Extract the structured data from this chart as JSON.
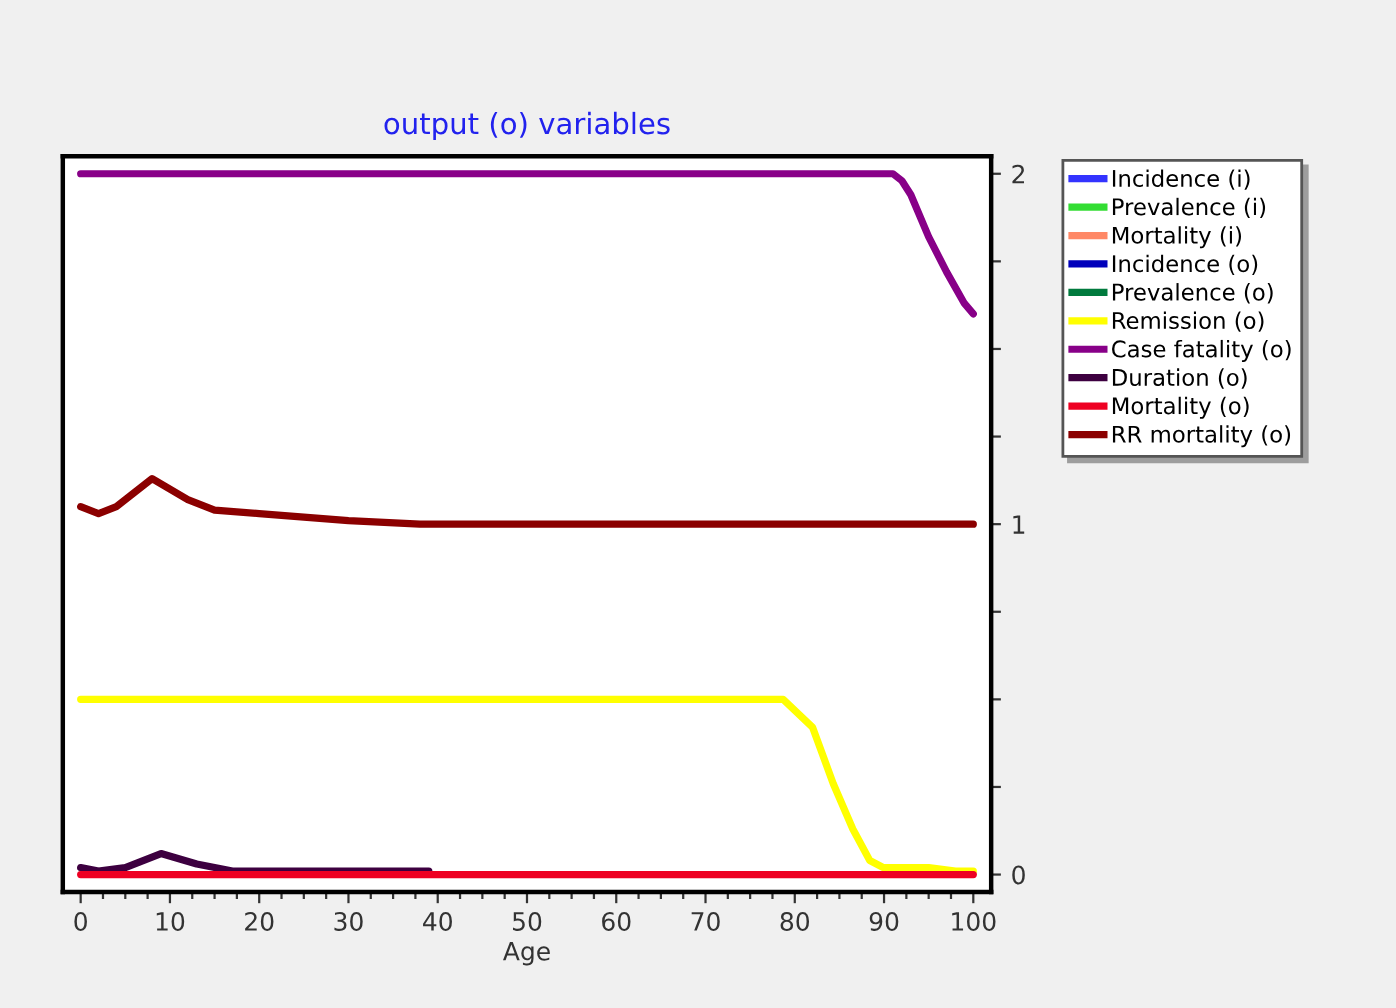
{
  "chart_data": {
    "type": "line",
    "title": "output (o) variables",
    "xlabel": "Age",
    "xlim": [
      -2,
      102
    ],
    "ylim": [
      -0.05,
      2.05
    ],
    "xticks": [
      0,
      {
        "value": 2.5,
        "label": null
      },
      {
        "value": 5,
        "label": null
      },
      {
        "value": 7.5,
        "label": null
      },
      10,
      {
        "value": 12.5,
        "label": null
      },
      {
        "value": 15,
        "label": null
      },
      {
        "value": 17.5,
        "label": null
      },
      20,
      {
        "value": 22.5,
        "label": null
      },
      {
        "value": 25,
        "label": null
      },
      {
        "value": 27.5,
        "label": null
      },
      30,
      {
        "value": 32.5,
        "label": null
      },
      {
        "value": 35,
        "label": null
      },
      {
        "value": 37.5,
        "label": null
      },
      40,
      {
        "value": 42.5,
        "label": null
      },
      {
        "value": 45,
        "label": null
      },
      {
        "value": 47.5,
        "label": null
      },
      50,
      {
        "value": 52.5,
        "label": null
      },
      {
        "value": 55,
        "label": null
      },
      {
        "value": 57.5,
        "label": null
      },
      60,
      {
        "value": 62.5,
        "label": null
      },
      {
        "value": 65,
        "label": null
      },
      {
        "value": 67.5,
        "label": null
      },
      70,
      {
        "value": 72.5,
        "label": null
      },
      {
        "value": 75,
        "label": null
      },
      {
        "value": 77.5,
        "label": null
      },
      80,
      {
        "value": 82.5,
        "label": null
      },
      {
        "value": 85,
        "label": null
      },
      {
        "value": 87.5,
        "label": null
      },
      90,
      {
        "value": 92.5,
        "label": null
      },
      {
        "value": 95,
        "label": null
      },
      {
        "value": 97.5,
        "label": null
      },
      100
    ],
    "yticks": [
      0,
      {
        "value": 0.25,
        "label": null
      },
      {
        "value": 0.5,
        "label": null
      },
      {
        "value": 0.75,
        "label": null
      },
      1,
      {
        "value": 1.25,
        "label": null
      },
      {
        "value": 1.5,
        "label": null
      },
      {
        "value": 1.75,
        "label": null
      },
      2
    ],
    "grid": false,
    "legend": "right",
    "line_style": "solid",
    "marker": "none",
    "series": [
      {
        "name": "Incidence (i)",
        "color": "#3333ff"
      },
      {
        "name": "Prevalence (i)",
        "color": "#33dd33"
      },
      {
        "name": "Mortality (i)",
        "color": "#ff8866"
      },
      {
        "name": "Incidence (o)",
        "color": "#0000bb"
      },
      {
        "name": "Prevalence (o)",
        "color": "#007a3d"
      },
      {
        "name": "Remission (o)",
        "color": "#ffff00",
        "x": [
          0,
          78.7,
          82,
          84.3,
          86.5,
          88.4,
          89.9,
          95,
          98,
          100
        ],
        "values": [
          0.5,
          0.5,
          0.42,
          0.26,
          0.13,
          0.04,
          0.02,
          0.02,
          0.01,
          0.01
        ]
      },
      {
        "name": "Case fatality (o)",
        "color": "#880088",
        "x": [
          0,
          90,
          91,
          92,
          93,
          95,
          97,
          99,
          100
        ],
        "values": [
          2,
          2,
          2,
          1.98,
          1.94,
          1.82,
          1.72,
          1.63,
          1.6
        ]
      },
      {
        "name": "Duration (o)",
        "color": "#3d0040",
        "x": [
          0,
          2,
          5,
          9,
          13,
          17,
          22,
          39
        ],
        "values": [
          0.02,
          0.01,
          0.02,
          0.06,
          0.03,
          0.01,
          0.01,
          0.01
        ]
      },
      {
        "name": "Mortality (o)",
        "color": "#ee0022",
        "x": [
          0,
          100
        ],
        "values": [
          0,
          0
        ]
      },
      {
        "name": "RR mortality (o)",
        "color": "#8b0000",
        "x": [
          0,
          2,
          4,
          8,
          12,
          15,
          20,
          30,
          38,
          100
        ],
        "values": [
          1.05,
          1.03,
          1.05,
          1.13,
          1.07,
          1.04,
          1.03,
          1.01,
          1.0,
          1.0
        ]
      }
    ]
  }
}
